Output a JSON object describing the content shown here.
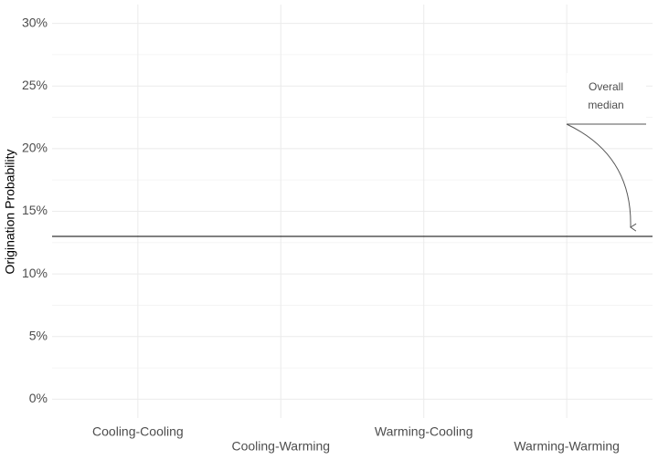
{
  "chart_data": {
    "type": "reference-line",
    "y_label": "Origination Probability",
    "categories": [
      "Cooling-Cooling",
      "Cooling-Warming",
      "Warming-Cooling",
      "Warming-Warming"
    ],
    "reference_line": {
      "value": 13,
      "color": "#000000"
    },
    "annotation": [
      "Overall",
      "median"
    ],
    "ylim": [
      -1.5,
      31.5
    ],
    "yticks": [
      {
        "value": 0,
        "label": "0%"
      },
      {
        "value": 5,
        "label": "5%"
      },
      {
        "value": 10,
        "label": "10%"
      },
      {
        "value": 15,
        "label": "15%"
      },
      {
        "value": 20,
        "label": "20%"
      },
      {
        "value": 25,
        "label": "25%"
      },
      {
        "value": 30,
        "label": "30%"
      }
    ],
    "grid": true
  }
}
